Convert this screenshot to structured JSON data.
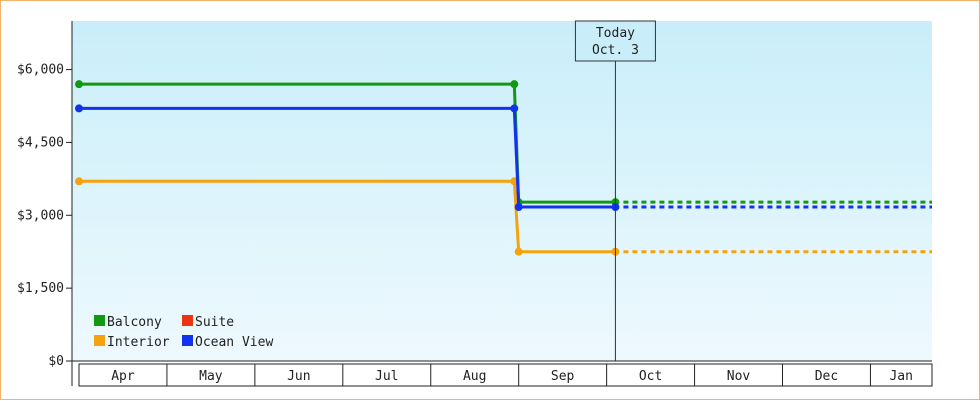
{
  "chart_data": {
    "type": "line",
    "step": true,
    "x_categories": [
      "Apr",
      "May",
      "Jun",
      "Jul",
      "Aug",
      "Sep",
      "Oct",
      "Nov",
      "Dec",
      "Jan"
    ],
    "y_ticks": [
      "$0",
      "$1,500",
      "$3,000",
      "$4,500",
      "$6,000"
    ],
    "y_tick_values": [
      0,
      1500,
      3000,
      4500,
      6000
    ],
    "ylim": [
      0,
      7000
    ],
    "x_range_months": [
      0,
      9.7
    ],
    "today_marker": {
      "line1": "Today",
      "line2": "Oct. 3",
      "x": 6.1
    },
    "series": [
      {
        "name": "Balcony",
        "color": "#119911",
        "points": [
          [
            0.0,
            5700
          ],
          [
            4.95,
            5700
          ],
          [
            5.0,
            3270
          ],
          [
            6.1,
            3270
          ]
        ],
        "forecast_value": 3270
      },
      {
        "name": "Suite",
        "color": "#ee3311",
        "points": [],
        "forecast_value": null
      },
      {
        "name": "Interior",
        "color": "#f5a20f",
        "points": [
          [
            0.0,
            3700
          ],
          [
            4.95,
            3700
          ],
          [
            5.0,
            2250
          ],
          [
            6.1,
            2250
          ]
        ],
        "forecast_value": 2250
      },
      {
        "name": "Ocean View",
        "color": "#1133ee",
        "points": [
          [
            0.0,
            5200
          ],
          [
            4.95,
            5200
          ],
          [
            5.0,
            3170
          ],
          [
            6.1,
            3170
          ]
        ],
        "forecast_value": 3170
      }
    ],
    "legend_position": "bottom-left",
    "grid": false,
    "background": {
      "top": "#c9eef9",
      "bottom": "#eef9fe"
    }
  }
}
